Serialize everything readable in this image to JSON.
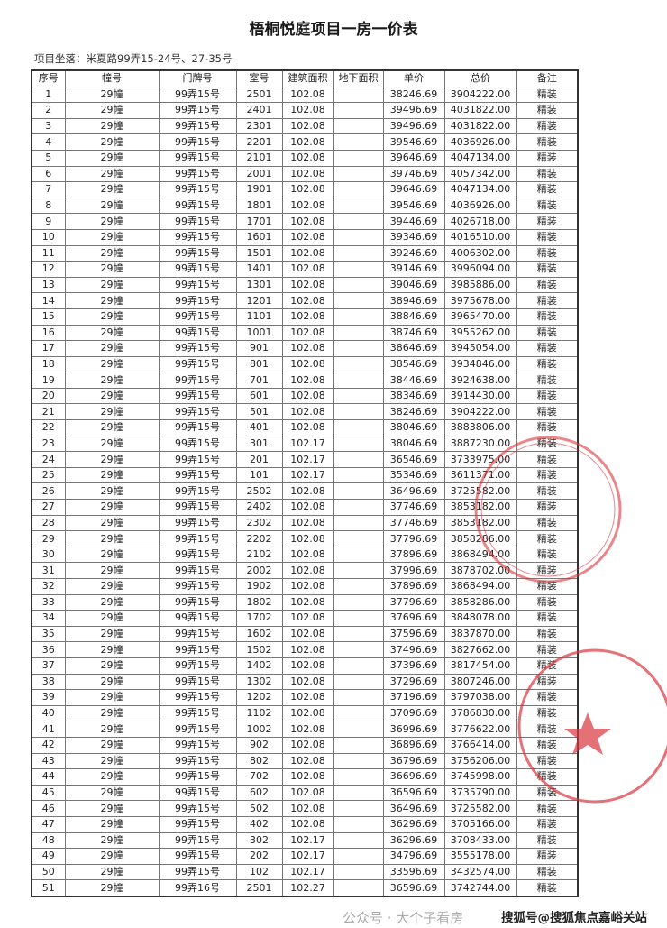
{
  "document": {
    "title": "梧桐悦庭项目一房一价表",
    "location": "项目坐落：米夏路99弄15-24号、27-35号",
    "columns": [
      "序号",
      "幢号",
      "门牌号",
      "室号",
      "建筑面积",
      "地下面积",
      "单价",
      "总价",
      "备注"
    ],
    "rows": [
      [
        "1",
        "29幢",
        "99弄15号",
        "2501",
        "102.08",
        "",
        "38246.69",
        "3904222.00",
        "精装"
      ],
      [
        "2",
        "29幢",
        "99弄15号",
        "2401",
        "102.08",
        "",
        "39496.69",
        "4031822.00",
        "精装"
      ],
      [
        "3",
        "29幢",
        "99弄15号",
        "2301",
        "102.08",
        "",
        "39496.69",
        "4031822.00",
        "精装"
      ],
      [
        "4",
        "29幢",
        "99弄15号",
        "2201",
        "102.08",
        "",
        "39546.69",
        "4036926.00",
        "精装"
      ],
      [
        "5",
        "29幢",
        "99弄15号",
        "2101",
        "102.08",
        "",
        "39646.69",
        "4047134.00",
        "精装"
      ],
      [
        "6",
        "29幢",
        "99弄15号",
        "2001",
        "102.08",
        "",
        "39746.69",
        "4057342.00",
        "精装"
      ],
      [
        "7",
        "29幢",
        "99弄15号",
        "1901",
        "102.08",
        "",
        "39646.69",
        "4047134.00",
        "精装"
      ],
      [
        "8",
        "29幢",
        "99弄15号",
        "1801",
        "102.08",
        "",
        "39546.69",
        "4036926.00",
        "精装"
      ],
      [
        "9",
        "29幢",
        "99弄15号",
        "1701",
        "102.08",
        "",
        "39446.69",
        "4026718.00",
        "精装"
      ],
      [
        "10",
        "29幢",
        "99弄15号",
        "1601",
        "102.08",
        "",
        "39346.69",
        "4016510.00",
        "精装"
      ],
      [
        "11",
        "29幢",
        "99弄15号",
        "1501",
        "102.08",
        "",
        "39246.69",
        "4006302.00",
        "精装"
      ],
      [
        "12",
        "29幢",
        "99弄15号",
        "1401",
        "102.08",
        "",
        "39146.69",
        "3996094.00",
        "精装"
      ],
      [
        "13",
        "29幢",
        "99弄15号",
        "1301",
        "102.08",
        "",
        "39046.69",
        "3985886.00",
        "精装"
      ],
      [
        "14",
        "29幢",
        "99弄15号",
        "1201",
        "102.08",
        "",
        "38946.69",
        "3975678.00",
        "精装"
      ],
      [
        "15",
        "29幢",
        "99弄15号",
        "1101",
        "102.08",
        "",
        "38846.69",
        "3965470.00",
        "精装"
      ],
      [
        "16",
        "29幢",
        "99弄15号",
        "1001",
        "102.08",
        "",
        "38746.69",
        "3955262.00",
        "精装"
      ],
      [
        "17",
        "29幢",
        "99弄15号",
        "901",
        "102.08",
        "",
        "38646.69",
        "3945054.00",
        "精装"
      ],
      [
        "18",
        "29幢",
        "99弄15号",
        "801",
        "102.08",
        "",
        "38546.69",
        "3934846.00",
        "精装"
      ],
      [
        "19",
        "29幢",
        "99弄15号",
        "701",
        "102.08",
        "",
        "38446.69",
        "3924638.00",
        "精装"
      ],
      [
        "20",
        "29幢",
        "99弄15号",
        "601",
        "102.08",
        "",
        "38346.69",
        "3914430.00",
        "精装"
      ],
      [
        "21",
        "29幢",
        "99弄15号",
        "501",
        "102.08",
        "",
        "38246.69",
        "3904222.00",
        "精装"
      ],
      [
        "22",
        "29幢",
        "99弄15号",
        "401",
        "102.08",
        "",
        "38046.69",
        "3883806.00",
        "精装"
      ],
      [
        "23",
        "29幢",
        "99弄15号",
        "301",
        "102.17",
        "",
        "38046.69",
        "3887230.00",
        "精装"
      ],
      [
        "24",
        "29幢",
        "99弄15号",
        "201",
        "102.17",
        "",
        "36546.69",
        "3733975.00",
        "精装"
      ],
      [
        "25",
        "29幢",
        "99弄15号",
        "101",
        "102.17",
        "",
        "35346.69",
        "3611371.00",
        "精装"
      ],
      [
        "26",
        "29幢",
        "99弄15号",
        "2502",
        "102.08",
        "",
        "36496.69",
        "3725582.00",
        "精装"
      ],
      [
        "27",
        "29幢",
        "99弄15号",
        "2402",
        "102.08",
        "",
        "37746.69",
        "3853182.00",
        "精装"
      ],
      [
        "28",
        "29幢",
        "99弄15号",
        "2302",
        "102.08",
        "",
        "37746.69",
        "3853182.00",
        "精装"
      ],
      [
        "29",
        "29幢",
        "99弄15号",
        "2202",
        "102.08",
        "",
        "37796.69",
        "3858286.00",
        "精装"
      ],
      [
        "30",
        "29幢",
        "99弄15号",
        "2102",
        "102.08",
        "",
        "37896.69",
        "3868494.00",
        "精装"
      ],
      [
        "31",
        "29幢",
        "99弄15号",
        "2002",
        "102.08",
        "",
        "37996.69",
        "3878702.00",
        "精装"
      ],
      [
        "32",
        "29幢",
        "99弄15号",
        "1902",
        "102.08",
        "",
        "37896.69",
        "3868494.00",
        "精装"
      ],
      [
        "33",
        "29幢",
        "99弄15号",
        "1802",
        "102.08",
        "",
        "37796.69",
        "3858286.00",
        "精装"
      ],
      [
        "34",
        "29幢",
        "99弄15号",
        "1702",
        "102.08",
        "",
        "37696.69",
        "3848078.00",
        "精装"
      ],
      [
        "35",
        "29幢",
        "99弄15号",
        "1602",
        "102.08",
        "",
        "37596.69",
        "3837870.00",
        "精装"
      ],
      [
        "36",
        "29幢",
        "99弄15号",
        "1502",
        "102.08",
        "",
        "37496.69",
        "3827662.00",
        "精装"
      ],
      [
        "37",
        "29幢",
        "99弄15号",
        "1402",
        "102.08",
        "",
        "37396.69",
        "3817454.00",
        "精装"
      ],
      [
        "38",
        "29幢",
        "99弄15号",
        "1302",
        "102.08",
        "",
        "37296.69",
        "3807246.00",
        "精装"
      ],
      [
        "39",
        "29幢",
        "99弄15号",
        "1202",
        "102.08",
        "",
        "37196.69",
        "3797038.00",
        "精装"
      ],
      [
        "40",
        "29幢",
        "99弄15号",
        "1102",
        "102.08",
        "",
        "37096.69",
        "3786830.00",
        "精装"
      ],
      [
        "41",
        "29幢",
        "99弄15号",
        "1002",
        "102.08",
        "",
        "36996.69",
        "3776622.00",
        "精装"
      ],
      [
        "42",
        "29幢",
        "99弄15号",
        "902",
        "102.08",
        "",
        "36896.69",
        "3766414.00",
        "精装"
      ],
      [
        "43",
        "29幢",
        "99弄15号",
        "802",
        "102.08",
        "",
        "36796.69",
        "3756206.00",
        "精装"
      ],
      [
        "44",
        "29幢",
        "99弄15号",
        "702",
        "102.08",
        "",
        "36696.69",
        "3745998.00",
        "精装"
      ],
      [
        "45",
        "29幢",
        "99弄15号",
        "602",
        "102.08",
        "",
        "36596.69",
        "3735790.00",
        "精装"
      ],
      [
        "46",
        "29幢",
        "99弄15号",
        "502",
        "102.08",
        "",
        "36496.69",
        "3725582.00",
        "精装"
      ],
      [
        "47",
        "29幢",
        "99弄15号",
        "402",
        "102.08",
        "",
        "36296.69",
        "3705166.00",
        "精装"
      ],
      [
        "48",
        "29幢",
        "99弄15号",
        "302",
        "102.17",
        "",
        "36296.69",
        "3708433.00",
        "精装"
      ],
      [
        "49",
        "29幢",
        "99弄15号",
        "202",
        "102.17",
        "",
        "34796.69",
        "3555178.00",
        "精装"
      ],
      [
        "50",
        "29幢",
        "99弄15号",
        "102",
        "102.17",
        "",
        "33596.69",
        "3432574.00",
        "精装"
      ],
      [
        "51",
        "29幢",
        "99弄16号",
        "2501",
        "102.27",
        "",
        "36596.69",
        "3742744.00",
        "精装"
      ]
    ]
  },
  "stamp": {
    "color": "#d9363e"
  },
  "watermarks": {
    "wechat": "公众号 · 大个子看房",
    "sohu": "搜狐号@搜狐焦点嘉峪关站"
  }
}
